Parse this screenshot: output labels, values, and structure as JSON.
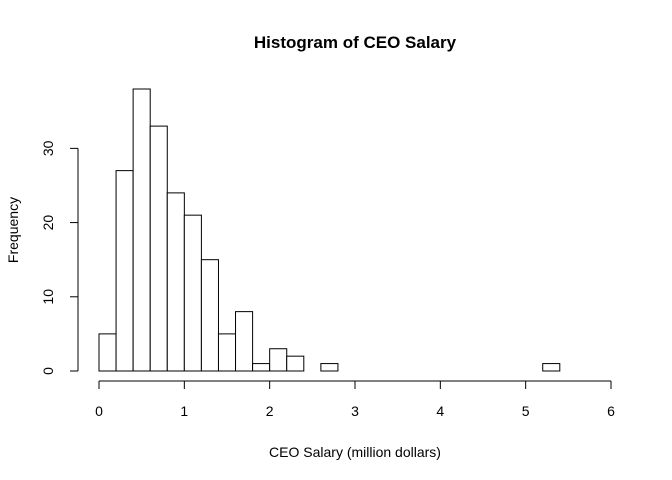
{
  "chart_data": {
    "type": "bar",
    "title": "Histogram of CEO Salary",
    "xlabel": "CEO Salary (million dollars)",
    "ylabel": "Frequency",
    "bin_width": 0.2,
    "bin_starts": [
      0,
      0.2,
      0.4,
      0.6,
      0.8,
      1.0,
      1.2,
      1.4,
      1.6,
      1.8,
      2.0,
      2.2,
      2.4,
      2.6,
      2.8,
      3.0,
      3.2,
      3.4,
      3.6,
      3.8,
      4.0,
      4.2,
      4.4,
      4.6,
      4.8,
      5.0,
      5.2,
      5.4,
      5.6,
      5.8
    ],
    "values": [
      5,
      27,
      38,
      33,
      24,
      21,
      15,
      5,
      8,
      1,
      3,
      2,
      0,
      1,
      0,
      0,
      0,
      0,
      0,
      0,
      0,
      0,
      0,
      0,
      0,
      0,
      1,
      0,
      0,
      0
    ],
    "xlim": [
      0,
      6
    ],
    "ylim": [
      0,
      38
    ],
    "xticks": [
      0,
      1,
      2,
      3,
      4,
      5,
      6
    ],
    "yticks": [
      0,
      10,
      20,
      30
    ],
    "grid": false,
    "legend": "none"
  }
}
